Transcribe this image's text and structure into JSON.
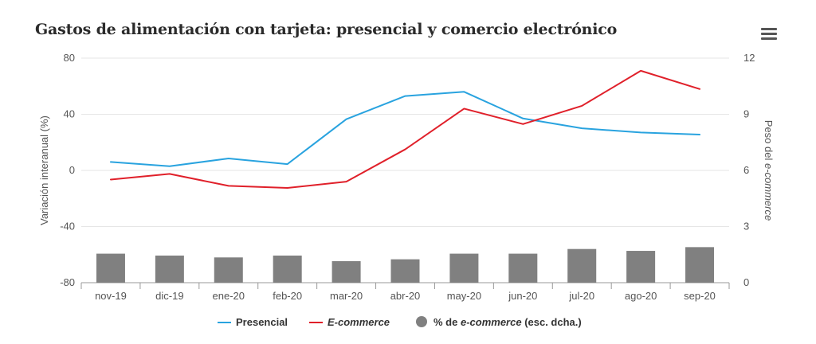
{
  "title": "Gastos de alimentación con tarjeta: presencial y comercio electrónico",
  "menu_icon": "hamburger-menu-icon",
  "chart_data": {
    "type": "line+bar",
    "categories": [
      "nov-19",
      "dic-19",
      "ene-20",
      "feb-20",
      "mar-20",
      "abr-20",
      "may-20",
      "jun-20",
      "jul-20",
      "ago-20",
      "sep-20"
    ],
    "y_left": {
      "label": "Variación interanual (%)",
      "range": [
        -80,
        80
      ],
      "ticks": [
        "80",
        "40",
        "0",
        "-40",
        "-80"
      ]
    },
    "y_right": {
      "label_parts": [
        "Peso del ",
        "e-commerce"
      ],
      "range": [
        0,
        12
      ],
      "ticks": [
        "12",
        "9",
        "6",
        "3",
        "0"
      ]
    },
    "series": [
      {
        "name": "Presencial",
        "type": "line",
        "axis": "left",
        "color": "#29a3df",
        "values": [
          6,
          3,
          8.5,
          4.5,
          36.5,
          53,
          56,
          37,
          30,
          27,
          25.5
        ]
      },
      {
        "name_parts": [
          "E-commerce"
        ],
        "italic": true,
        "type": "line",
        "axis": "left",
        "color": "#e0202a",
        "values": [
          -6.5,
          -2.5,
          -11,
          -12.5,
          -8,
          15,
          44,
          33,
          46,
          71,
          58
        ]
      },
      {
        "name_parts": [
          "% de ",
          "e-commerce",
          " (esc. dcha.)"
        ],
        "type": "bar",
        "axis": "right",
        "color": "#808080",
        "values": [
          1.55,
          1.45,
          1.35,
          1.45,
          1.15,
          1.25,
          1.55,
          1.55,
          1.8,
          1.7,
          1.9
        ]
      }
    ],
    "legend_position": "bottom-center",
    "grid": true
  }
}
